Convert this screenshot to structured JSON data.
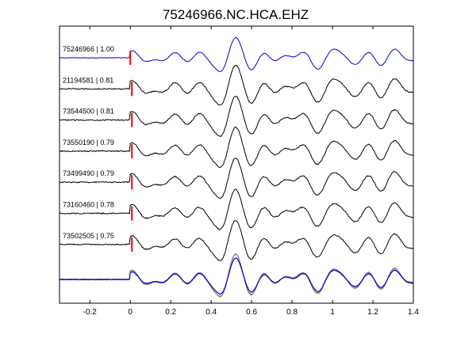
{
  "chart_data": {
    "type": "line",
    "title": "75246966.NC.HCA.EHZ",
    "xlabel": "",
    "ylabel": "",
    "xlim": [
      -0.35,
      1.4
    ],
    "xticks": [
      -0.2,
      0,
      0.2,
      0.4,
      0.6,
      0.8,
      1,
      1.2,
      1.4
    ],
    "xtick_labels": [
      "-0.2",
      "0",
      "0.2",
      "0.4",
      "0.6",
      "0.8",
      "1",
      "1.2",
      "1.4"
    ],
    "grid": false,
    "pick_time": 0,
    "colors": {
      "reference": "#0000cc",
      "match": "#000000",
      "stack_match": "#888888",
      "pick": "#ff0000"
    },
    "series": [
      {
        "label": "75246966 | 1.00",
        "id": "75246966",
        "correlation": 1.0,
        "reference": true
      },
      {
        "label": "21194581 | 0.81",
        "id": "21194581",
        "correlation": 0.81
      },
      {
        "label": "73544500 | 0.81",
        "id": "73544500",
        "correlation": 0.81
      },
      {
        "label": "73550190 | 0.79",
        "id": "73550190",
        "correlation": 0.79
      },
      {
        "label": "73499490 | 0.79",
        "id": "73499490",
        "correlation": 0.79
      },
      {
        "label": "73160460 | 0.78",
        "id": "73160460",
        "correlation": 0.78
      },
      {
        "label": "73502505 | 0.75",
        "id": "73502505",
        "correlation": 0.75
      }
    ],
    "overlay": "all traces superimposed (bottom panel)"
  }
}
